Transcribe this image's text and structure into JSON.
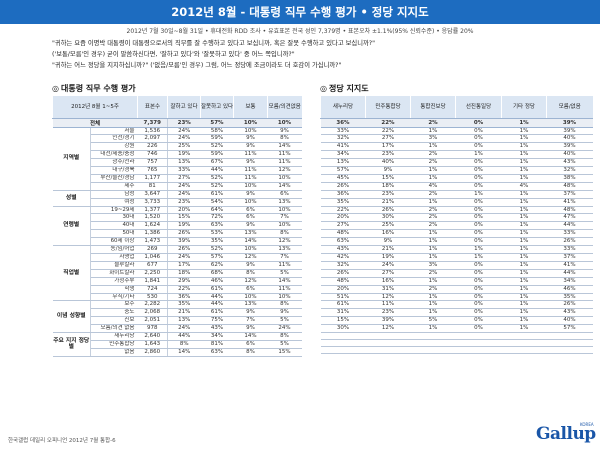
{
  "title": "2012년 8월 - 대통령 직무 수행 평가 • 정당 지지도",
  "subline": "2012년 7월 30일~8월 31일 • 휴대전화 RDD 조사 • 유효표본 전국 성인 7,379명 • 표본오차 ±1.1%(95% 신뢰수준) • 응답률 20%",
  "questions": [
    "\"귀하는 요즘 이명박 대통령이 대통령으로서의 직무를 잘 수행하고 있다고 보십니까, 혹은 잘못 수행하고 있다고 보십니까?\"",
    "('보통/모름'인 경우) 굳이 말씀하신다면, '잘하고 있다'와 '잘못하고 있다' 중 어느 쪽입니까?\"",
    "\"귀하는 어느 정당을 지지하십니까?\" ('없음/모름'인 경우) 그럼, 어느 정당에 조금이라도 더 호감이 가십니까?\""
  ],
  "sec1_title": "대통령 직무 수행 평가",
  "sec2_title": "정당 지지도",
  "section_marker": "◎",
  "t1_header": {
    "period": "2012년 8월 1~5주",
    "sample": "표본수",
    "good": "잘하고 있다",
    "bad": "잘못하고 있다",
    "neutral": "보통",
    "dk": "모름/의견없음"
  },
  "t2_header": {
    "saenuri": "새누리당",
    "minju": "민주통합당",
    "tonghap": "통합진보당",
    "seonjin": "선진통일당",
    "etc": "기타 정당",
    "dk": "모름/없음"
  },
  "total": {
    "label": "전체",
    "sample": "7,379",
    "t1": [
      "23%",
      "57%",
      "10%",
      "10%"
    ],
    "t2": [
      "36%",
      "22%",
      "2%",
      "0%",
      "1%",
      "39%"
    ]
  },
  "groups": [
    {
      "name": "지역별",
      "rows": [
        {
          "label": "서울",
          "sample": "1,536",
          "t1": [
            "24%",
            "58%",
            "10%",
            "9%"
          ],
          "t2": [
            "33%",
            "22%",
            "1%",
            "0%",
            "1%",
            "39%"
          ]
        },
        {
          "label": "인천/경기",
          "sample": "2,097",
          "t1": [
            "24%",
            "59%",
            "9%",
            "8%"
          ],
          "t2": [
            "32%",
            "27%",
            "3%",
            "0%",
            "1%",
            "40%"
          ]
        },
        {
          "label": "강원",
          "sample": "226",
          "t1": [
            "25%",
            "52%",
            "9%",
            "14%"
          ],
          "t2": [
            "41%",
            "17%",
            "1%",
            "0%",
            "1%",
            "39%"
          ]
        },
        {
          "label": "대전/세종/충청",
          "sample": "746",
          "t1": [
            "19%",
            "59%",
            "11%",
            "11%"
          ],
          "t2": [
            "34%",
            "23%",
            "2%",
            "1%",
            "1%",
            "40%"
          ]
        },
        {
          "label": "광주/전라",
          "sample": "757",
          "t1": [
            "13%",
            "67%",
            "9%",
            "11%"
          ],
          "t2": [
            "13%",
            "40%",
            "2%",
            "0%",
            "1%",
            "43%"
          ]
        },
        {
          "label": "대구/경북",
          "sample": "765",
          "t1": [
            "33%",
            "44%",
            "11%",
            "12%"
          ],
          "t2": [
            "57%",
            "9%",
            "1%",
            "0%",
            "1%",
            "32%"
          ]
        },
        {
          "label": "부산/울산/경남",
          "sample": "1,177",
          "t1": [
            "27%",
            "52%",
            "11%",
            "10%"
          ],
          "t2": [
            "45%",
            "15%",
            "1%",
            "0%",
            "1%",
            "38%"
          ]
        },
        {
          "label": "제주",
          "sample": "81",
          "t1": [
            "24%",
            "52%",
            "10%",
            "14%"
          ],
          "t2": [
            "26%",
            "18%",
            "4%",
            "0%",
            "4%",
            "48%"
          ]
        }
      ]
    },
    {
      "name": "성별",
      "rows": [
        {
          "label": "남성",
          "sample": "3,647",
          "t1": [
            "24%",
            "61%",
            "9%",
            "6%"
          ],
          "t2": [
            "36%",
            "23%",
            "2%",
            "1%",
            "1%",
            "37%"
          ]
        },
        {
          "label": "여성",
          "sample": "3,733",
          "t1": [
            "23%",
            "54%",
            "10%",
            "13%"
          ],
          "t2": [
            "35%",
            "21%",
            "1%",
            "0%",
            "1%",
            "41%"
          ]
        }
      ]
    },
    {
      "name": "연령별",
      "rows": [
        {
          "label": "19~29세",
          "sample": "1,377",
          "t1": [
            "20%",
            "64%",
            "6%",
            "10%"
          ],
          "t2": [
            "22%",
            "26%",
            "2%",
            "0%",
            "1%",
            "48%"
          ]
        },
        {
          "label": "30대",
          "sample": "1,520",
          "t1": [
            "15%",
            "72%",
            "6%",
            "7%"
          ],
          "t2": [
            "20%",
            "30%",
            "2%",
            "0%",
            "1%",
            "47%"
          ]
        },
        {
          "label": "40대",
          "sample": "1,624",
          "t1": [
            "19%",
            "63%",
            "9%",
            "10%"
          ],
          "t2": [
            "27%",
            "25%",
            "2%",
            "0%",
            "1%",
            "44%"
          ]
        },
        {
          "label": "50대",
          "sample": "1,386",
          "t1": [
            "26%",
            "53%",
            "13%",
            "8%"
          ],
          "t2": [
            "48%",
            "16%",
            "1%",
            "0%",
            "1%",
            "33%"
          ]
        },
        {
          "label": "60세 이상",
          "sample": "1,473",
          "t1": [
            "39%",
            "35%",
            "14%",
            "12%"
          ],
          "t2": [
            "63%",
            "9%",
            "1%",
            "0%",
            "1%",
            "26%"
          ]
        }
      ]
    },
    {
      "name": "직업별",
      "rows": [
        {
          "label": "농/임/어업",
          "sample": "269",
          "t1": [
            "26%",
            "52%",
            "10%",
            "13%"
          ],
          "t2": [
            "43%",
            "21%",
            "1%",
            "1%",
            "1%",
            "33%"
          ]
        },
        {
          "label": "자영업",
          "sample": "1,046",
          "t1": [
            "24%",
            "57%",
            "12%",
            "7%"
          ],
          "t2": [
            "42%",
            "19%",
            "1%",
            "1%",
            "1%",
            "37%"
          ]
        },
        {
          "label": "블루칼라",
          "sample": "677",
          "t1": [
            "17%",
            "62%",
            "9%",
            "11%"
          ],
          "t2": [
            "32%",
            "24%",
            "3%",
            "0%",
            "1%",
            "41%"
          ]
        },
        {
          "label": "화이트칼라",
          "sample": "2,250",
          "t1": [
            "18%",
            "68%",
            "8%",
            "5%"
          ],
          "t2": [
            "26%",
            "27%",
            "2%",
            "0%",
            "1%",
            "44%"
          ]
        },
        {
          "label": "가정주부",
          "sample": "1,841",
          "t1": [
            "29%",
            "46%",
            "12%",
            "14%"
          ],
          "t2": [
            "48%",
            "16%",
            "1%",
            "0%",
            "1%",
            "34%"
          ]
        },
        {
          "label": "학생",
          "sample": "724",
          "t1": [
            "22%",
            "61%",
            "6%",
            "11%"
          ],
          "t2": [
            "20%",
            "31%",
            "2%",
            "0%",
            "1%",
            "46%"
          ]
        },
        {
          "label": "무직/기타",
          "sample": "530",
          "t1": [
            "36%",
            "44%",
            "10%",
            "10%"
          ],
          "t2": [
            "51%",
            "12%",
            "1%",
            "0%",
            "1%",
            "35%"
          ]
        }
      ]
    },
    {
      "name": "이념 성향별",
      "rows": [
        {
          "label": "보수",
          "sample": "2,282",
          "t1": [
            "35%",
            "44%",
            "13%",
            "8%"
          ],
          "t2": [
            "61%",
            "11%",
            "1%",
            "0%",
            "1%",
            "26%"
          ]
        },
        {
          "label": "중도",
          "sample": "2,068",
          "t1": [
            "21%",
            "61%",
            "9%",
            "9%"
          ],
          "t2": [
            "31%",
            "23%",
            "1%",
            "0%",
            "1%",
            "43%"
          ]
        },
        {
          "label": "진보",
          "sample": "2,051",
          "t1": [
            "13%",
            "75%",
            "7%",
            "5%"
          ],
          "t2": [
            "15%",
            "39%",
            "5%",
            "0%",
            "1%",
            "40%"
          ]
        },
        {
          "label": "모름/의견 없음",
          "sample": "978",
          "t1": [
            "24%",
            "43%",
            "9%",
            "24%"
          ],
          "t2": [
            "30%",
            "12%",
            "1%",
            "0%",
            "1%",
            "57%"
          ]
        }
      ]
    },
    {
      "name": "주요 지지 정당별",
      "rows": [
        {
          "label": "새누리당",
          "sample": "2,640",
          "t1": [
            "44%",
            "34%",
            "14%",
            "8%"
          ],
          "t2": []
        },
        {
          "label": "민주통합당",
          "sample": "1,643",
          "t1": [
            "8%",
            "81%",
            "6%",
            "5%"
          ],
          "t2": []
        },
        {
          "label": "없음",
          "sample": "2,860",
          "t1": [
            "14%",
            "63%",
            "8%",
            "15%"
          ],
          "t2": []
        }
      ]
    }
  ],
  "footer": "한국갤럽 데일리 오피니언 2012년 7월 통합-6",
  "logo": "Gallup",
  "logo_mark": "KOREA"
}
